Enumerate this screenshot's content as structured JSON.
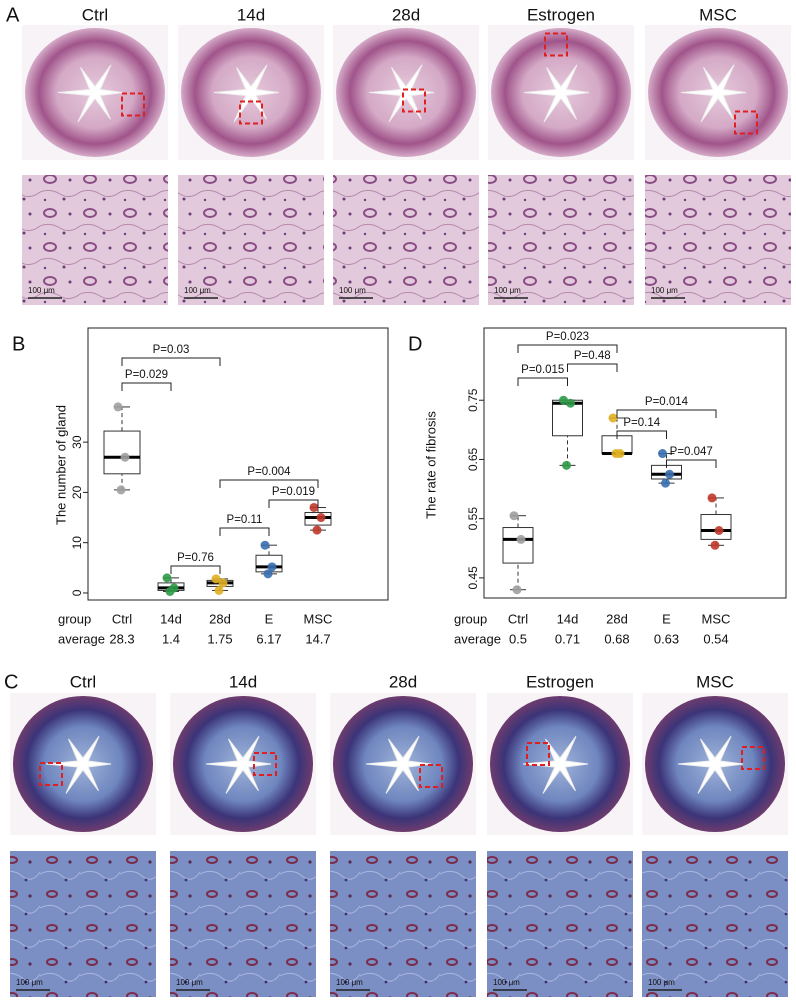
{
  "panel_a": {
    "label": "A",
    "columns": [
      "Ctrl",
      "14d",
      "28d",
      "Estrogen",
      "MSC"
    ],
    "scale_bar": "100 μm"
  },
  "chart_data": [
    {
      "type": "box",
      "panel_label": "B",
      "ylabel": "The number of gland",
      "group_label": "group",
      "average_label": "average",
      "categories": [
        "Ctrl",
        "14d",
        "28d",
        "E",
        "MSC"
      ],
      "averages": [
        28.3,
        1.4,
        1.75,
        6.17,
        14.7
      ],
      "ylim": [
        -1.4,
        52.7
      ],
      "yticks": [
        0,
        10,
        20,
        30
      ],
      "boxes": [
        {
          "color": "#a0a0a0",
          "min": 20.5,
          "q1": 23.7,
          "median": 27,
          "q3": 32.2,
          "max": 37,
          "points": [
            37,
            27,
            20.5
          ]
        },
        {
          "color": "#2e9a46",
          "min": 0.3,
          "q1": 0.5,
          "median": 1,
          "q3": 2,
          "max": 3,
          "points": [
            3,
            1,
            0.3
          ]
        },
        {
          "color": "#e0b020",
          "min": 0.5,
          "q1": 1.3,
          "median": 2,
          "q3": 2.5,
          "max": 2.8,
          "points": [
            2.8,
            2,
            0.5
          ]
        },
        {
          "color": "#3a6fb0",
          "min": 3.8,
          "q1": 4.2,
          "median": 5.2,
          "q3": 7.5,
          "max": 9.5,
          "points": [
            9.5,
            5.2,
            3.8
          ]
        },
        {
          "color": "#c0392b",
          "min": 12.5,
          "q1": 13.5,
          "median": 15,
          "q3": 16,
          "max": 17,
          "points": [
            17,
            15,
            12.5
          ]
        }
      ],
      "comparisons": [
        {
          "pair": [
            "Ctrl",
            "28d"
          ],
          "label": "P=0.03"
        },
        {
          "pair": [
            "Ctrl",
            "14d"
          ],
          "label": "P=0.029"
        },
        {
          "pair": [
            "28d",
            "MSC"
          ],
          "label": "P=0.004"
        },
        {
          "pair": [
            "E",
            "MSC"
          ],
          "label": "P=0.019"
        },
        {
          "pair": [
            "28d",
            "E"
          ],
          "label": "P=0.11"
        },
        {
          "pair": [
            "14d",
            "28d"
          ],
          "label": "P=0.76"
        }
      ]
    },
    {
      "type": "box",
      "panel_label": "D",
      "ylabel": "The rate of fibrosis",
      "group_label": "group",
      "average_label": "average",
      "categories": [
        "Ctrl",
        "14d",
        "28d",
        "E",
        "MSC"
      ],
      "averages": [
        0.5,
        0.71,
        0.68,
        0.63,
        0.54
      ],
      "ylim": [
        0.416,
        0.872
      ],
      "yticks": [
        0.45,
        0.55,
        0.65,
        0.75
      ],
      "boxes": [
        {
          "color": "#a0a0a0",
          "min": 0.43,
          "q1": 0.475,
          "median": 0.515,
          "q3": 0.535,
          "max": 0.555,
          "points": [
            0.555,
            0.515,
            0.43
          ]
        },
        {
          "color": "#2e9a46",
          "min": 0.64,
          "q1": 0.69,
          "median": 0.745,
          "q3": 0.75,
          "max": 0.75,
          "points": [
            0.75,
            0.745,
            0.64
          ]
        },
        {
          "color": "#e0b020",
          "min": 0.66,
          "q1": 0.66,
          "median": 0.66,
          "q3": 0.69,
          "max": 0.72,
          "points": [
            0.72,
            0.66,
            0.66
          ]
        },
        {
          "color": "#3a6fb0",
          "min": 0.61,
          "q1": 0.617,
          "median": 0.625,
          "q3": 0.64,
          "max": 0.66,
          "points": [
            0.66,
            0.625,
            0.61
          ]
        },
        {
          "color": "#c0392b",
          "min": 0.505,
          "q1": 0.515,
          "median": 0.53,
          "q3": 0.557,
          "max": 0.585,
          "points": [
            0.585,
            0.53,
            0.505
          ]
        }
      ],
      "comparisons": [
        {
          "pair": [
            "Ctrl",
            "28d"
          ],
          "label": "P=0.023"
        },
        {
          "pair": [
            "14d",
            "28d"
          ],
          "label": "P=0.48"
        },
        {
          "pair": [
            "Ctrl",
            "14d"
          ],
          "label": "P=0.015"
        },
        {
          "pair": [
            "28d",
            "MSC"
          ],
          "label": "P=0.014"
        },
        {
          "pair": [
            "28d",
            "E"
          ],
          "label": "P=0.14"
        },
        {
          "pair": [
            "E",
            "MSC"
          ],
          "label": "P=0.047"
        }
      ]
    }
  ],
  "panel_c": {
    "label": "C",
    "columns": [
      "Ctrl",
      "14d",
      "28d",
      "Estrogen",
      "MSC"
    ],
    "scale_bar": "100 μm"
  }
}
